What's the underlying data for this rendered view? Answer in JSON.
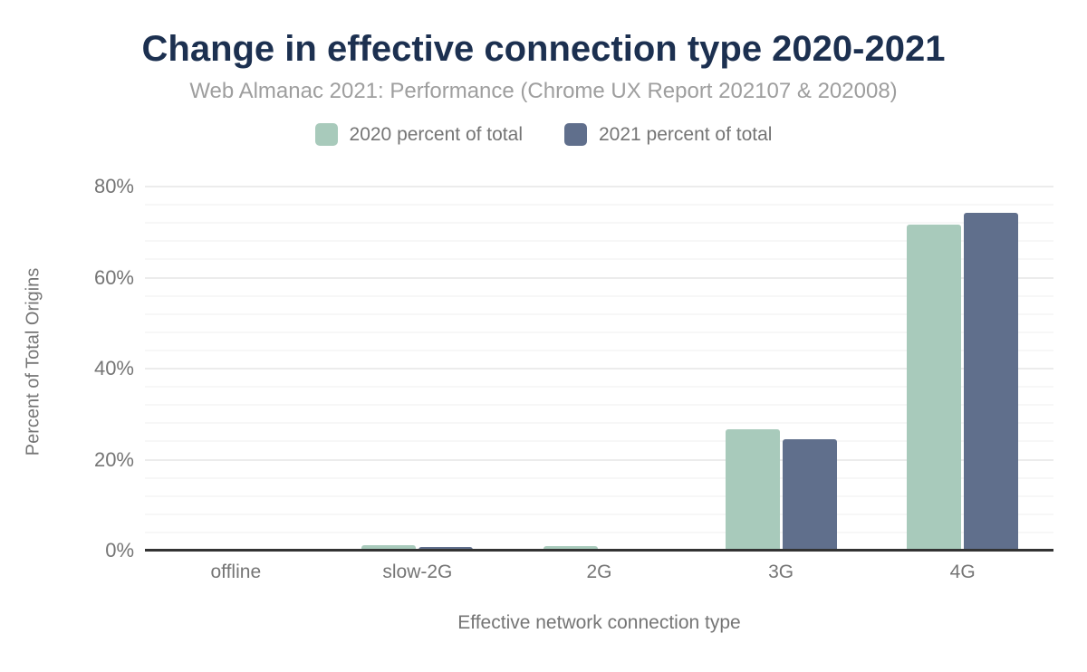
{
  "chart_data": {
    "type": "bar",
    "title": "Change in effective connection type 2020-2021",
    "subtitle": "Web Almanac 2021: Performance (Chrome UX Report 202107 & 202008)",
    "categories": [
      "offline",
      "slow-2G",
      "2G",
      "3G",
      "4G"
    ],
    "series": [
      {
        "name": "2020 percent of total",
        "color": "#a8cabb",
        "values": [
          0.0,
          1.2,
          1.0,
          26.6,
          71.6
        ]
      },
      {
        "name": "2021 percent of total",
        "color": "#606f8c",
        "values": [
          0.0,
          0.8,
          0.2,
          24.5,
          74.2
        ]
      }
    ],
    "xlabel": "Effective network connection type",
    "ylabel": "Percent of Total Origins",
    "ylim": [
      0,
      80
    ],
    "y_tick_labels": [
      "0%",
      "20%",
      "40%",
      "60%",
      "80%"
    ],
    "y_major_step": 20,
    "y_minor_step": 4,
    "grid": true,
    "legend_position": "top"
  },
  "colors": {
    "title": "#1c3050",
    "subtitle": "#9e9e9e",
    "axis_text": "#757575",
    "axis_line": "#333333",
    "grid_major": "#ececec",
    "grid_minor": "#f7f7f7",
    "background": "#ffffff"
  }
}
